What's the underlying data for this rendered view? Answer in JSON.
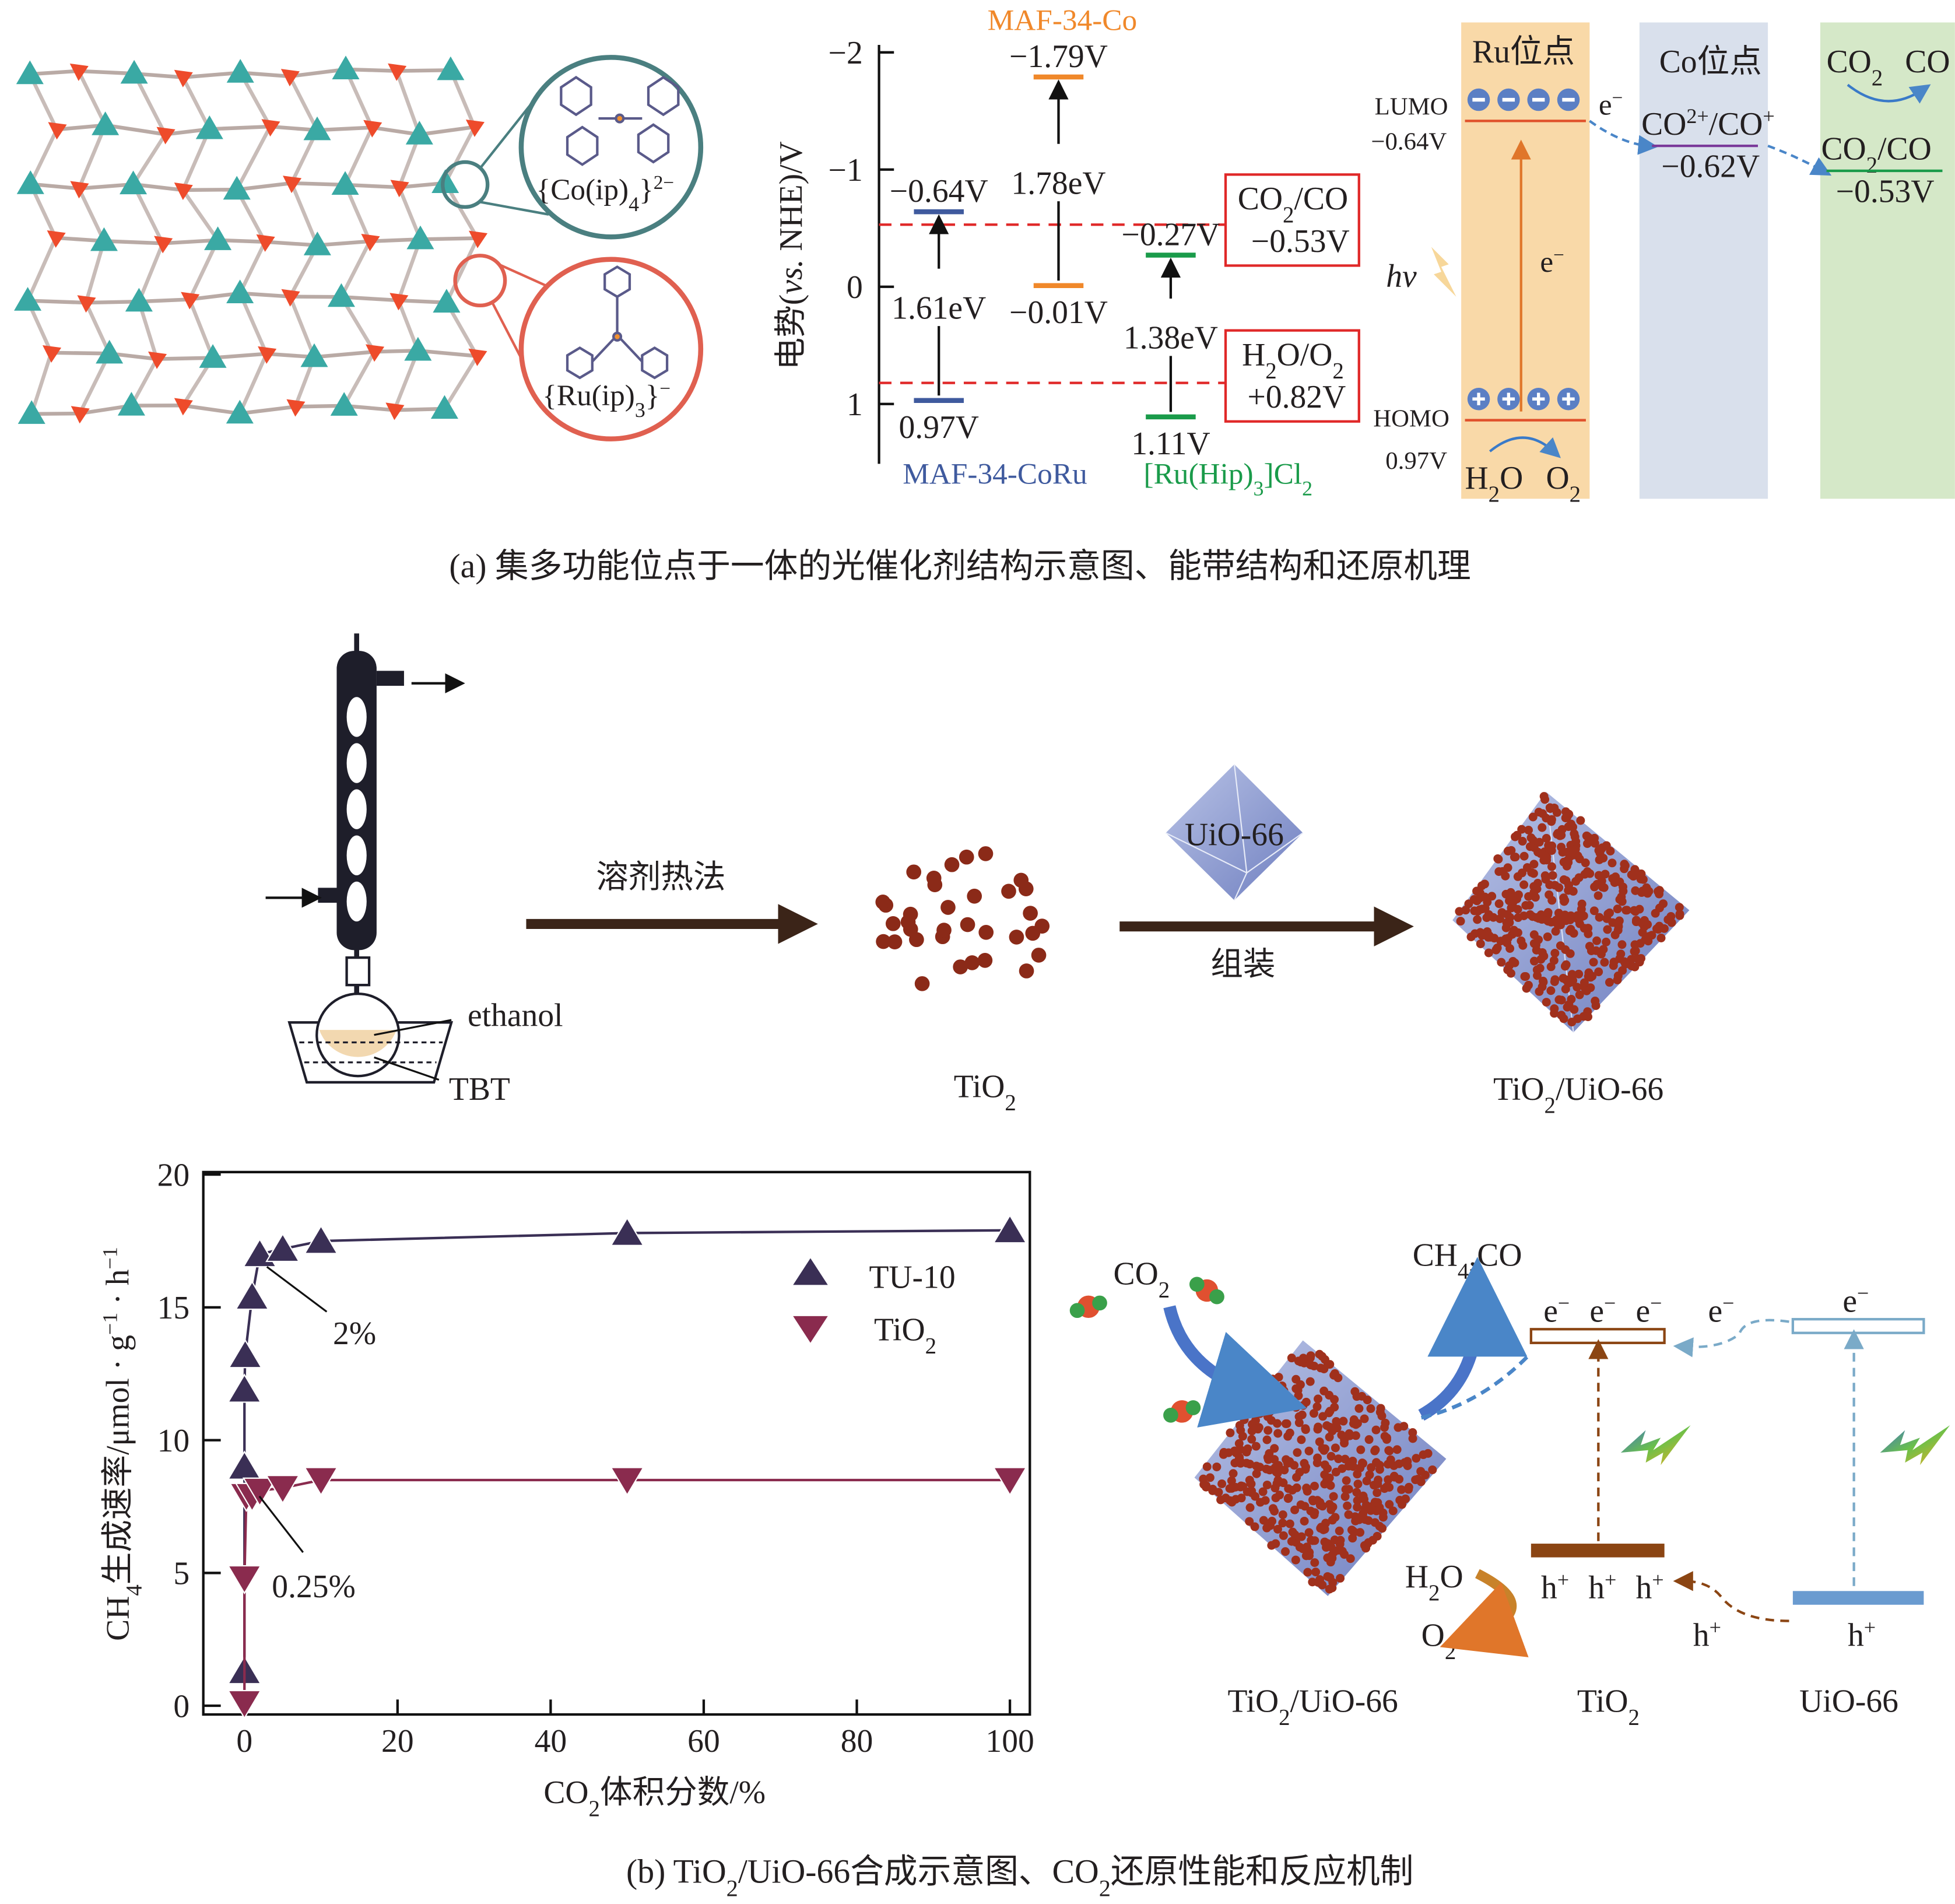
{
  "colors": {
    "teal": "#3aa9a4",
    "red": "#ee4b2b",
    "blue_level": "#3f5a9e",
    "orange_level": "#f0882a",
    "green_level": "#1a9b4a",
    "dashed_red": "#e02828",
    "ru_column": "#f9d9a8",
    "co_column": "#d9e0ec",
    "co2_column": "#d5e8c8",
    "tu10": "#3a2f55",
    "tio2": "#8a2b4e",
    "brown": "#8b4513"
  },
  "panel_a": {
    "mof": {
      "co_label": "{Co(ip)",
      "co_sub": "4",
      "co_close": "}",
      "co_sup": "2−",
      "ru_label": "{Ru(ip)",
      "ru_sub": "3",
      "ru_close": "}",
      "ru_sup": "−"
    },
    "energy": {
      "axis_label_cn": "电势",
      "axis_label_open": "(",
      "axis_label_vs": "vs.",
      "axis_label_rest": " NHE)/V",
      "ticks": [
        {
          "value": -2,
          "label": "−2"
        },
        {
          "value": -1,
          "label": "−1"
        },
        {
          "value": 0,
          "label": "0"
        },
        {
          "value": 1,
          "label": "1"
        }
      ],
      "compounds": [
        {
          "name": "MAF-34-CoRu",
          "lumo": -0.64,
          "homo": 0.97,
          "lumo_label": "−0.64V",
          "homo_label": "0.97V",
          "gap_label": "1.61eV",
          "color": "#3f5a9e"
        },
        {
          "name": "MAF-34-Co",
          "lumo": -1.79,
          "homo": -0.01,
          "lumo_label": "−1.79V",
          "homo_label": "−0.01V",
          "gap_label": "1.78eV",
          "color": "#f0882a"
        },
        {
          "name": "[Ru(Hip)",
          "name_sub": "3",
          "name_tail": "]Cl",
          "name_sub2": "2",
          "lumo": -0.27,
          "homo": 1.11,
          "lumo_label": "−0.27V",
          "homo_label": "1.11V",
          "gap_label": "1.38eV",
          "color": "#1a9b4a"
        }
      ],
      "references": [
        {
          "value": -0.53,
          "pair": "CO",
          "pair_sub": "2",
          "pair_tail": "/CO",
          "label": "−0.53V"
        },
        {
          "value": 0.82,
          "pair": "H",
          "pair_sub": "2",
          "pair_tail": "O/O",
          "pair_sub2": "2",
          "label": "+0.82V"
        }
      ]
    },
    "mechanism": {
      "ru_site": "Ru位点",
      "co_site": "Co位点",
      "lumo": "LUMO",
      "lumo_value": "−0.64V",
      "homo": "HOMO",
      "homo_value": "0.97V",
      "electron": "e",
      "electron_sup": "−",
      "hv": "hv",
      "h2o": "H",
      "h2o_sub": "2",
      "h2o_tail": "O",
      "o2": "O",
      "o2_sub": "2",
      "co_couple": "CO",
      "co_couple_sup": "2+",
      "co_couple_mid": "/CO",
      "co_couple_sup2": "+",
      "co_value": "−0.62V",
      "co2": "CO",
      "co2_sub": "2",
      "co": "CO",
      "co2co": "CO",
      "co2co_sub": "2",
      "co2co_tail": "/CO",
      "co2co_value": "−0.53V"
    },
    "caption": "(a) 集多功能位点于一体的光催化剂结构示意图、能带结构和还原机理"
  },
  "panel_b": {
    "synthesis": {
      "ethanol": "ethanol",
      "tbt": "TBT",
      "solvothermal": "溶剂热法",
      "tio2": "TiO",
      "tio2_sub": "2",
      "uio66": "UiO-66",
      "assemble": "组装",
      "composite": "TiO",
      "composite_sub": "2",
      "composite_tail": "/UiO-66"
    },
    "mechanism": {
      "co2": "CO",
      "co2_sub": "2",
      "products": "CH",
      "products_sub": "4",
      "products_tail": ",CO",
      "h2o": "H",
      "h2o_sub": "2",
      "h2o_tail": "O",
      "o2": "O",
      "o2_sub": "2",
      "electron": "e",
      "electron_sup": "−",
      "hole": "h",
      "hole_sup": "+",
      "composite": "TiO",
      "composite_sub": "2",
      "composite_tail": "/UiO-66",
      "tio2": "TiO",
      "tio2_sub": "2",
      "uio66": "UiO-66"
    },
    "caption_pre": "(b) TiO",
    "caption_sub": "2",
    "caption_mid": "/UiO-66合成示意图、CO",
    "caption_sub2": "2",
    "caption_tail": "还原性能和反应机制"
  },
  "chart_data": {
    "type": "line",
    "title": "",
    "xlabel": "CO2体积分数/%",
    "xlabel_pre": "CO",
    "xlabel_sub": "2",
    "xlabel_tail": "体积分数/%",
    "ylabel": "CH4生成速率/μmol·g−1·h−1",
    "ylabel_pre": "CH",
    "ylabel_sub": "4",
    "ylabel_mid": "生成速率/μmol · g",
    "ylabel_sup": "−1",
    "ylabel_mid2": " · h",
    "ylabel_sup2": "−1",
    "xlim": [
      -5,
      102
    ],
    "ylim": [
      0,
      20
    ],
    "xticks": [
      0,
      20,
      40,
      60,
      80,
      100
    ],
    "yticks": [
      0,
      5,
      10,
      15,
      20
    ],
    "legend_position": "top-right",
    "series": [
      {
        "name": "TU-10",
        "marker": "up-triangle",
        "x": [
          0,
          0,
          0,
          0.1,
          1,
          2,
          5,
          10,
          50,
          100
        ],
        "y": [
          1.3,
          9.0,
          11.9,
          13.2,
          15.4,
          17.0,
          17.2,
          17.5,
          17.8,
          17.9
        ]
      },
      {
        "name": "TiO2",
        "name_pre": "TiO",
        "name_sub": "2",
        "marker": "down-triangle",
        "x": [
          0,
          0,
          0.25,
          1,
          2,
          5,
          10,
          50,
          100
        ],
        "y": [
          0.1,
          4.8,
          7.9,
          7.9,
          8.1,
          8.2,
          8.5,
          8.5,
          8.5
        ]
      }
    ],
    "annotations": [
      {
        "text": "2%"
      },
      {
        "text": "0.25%"
      }
    ]
  }
}
